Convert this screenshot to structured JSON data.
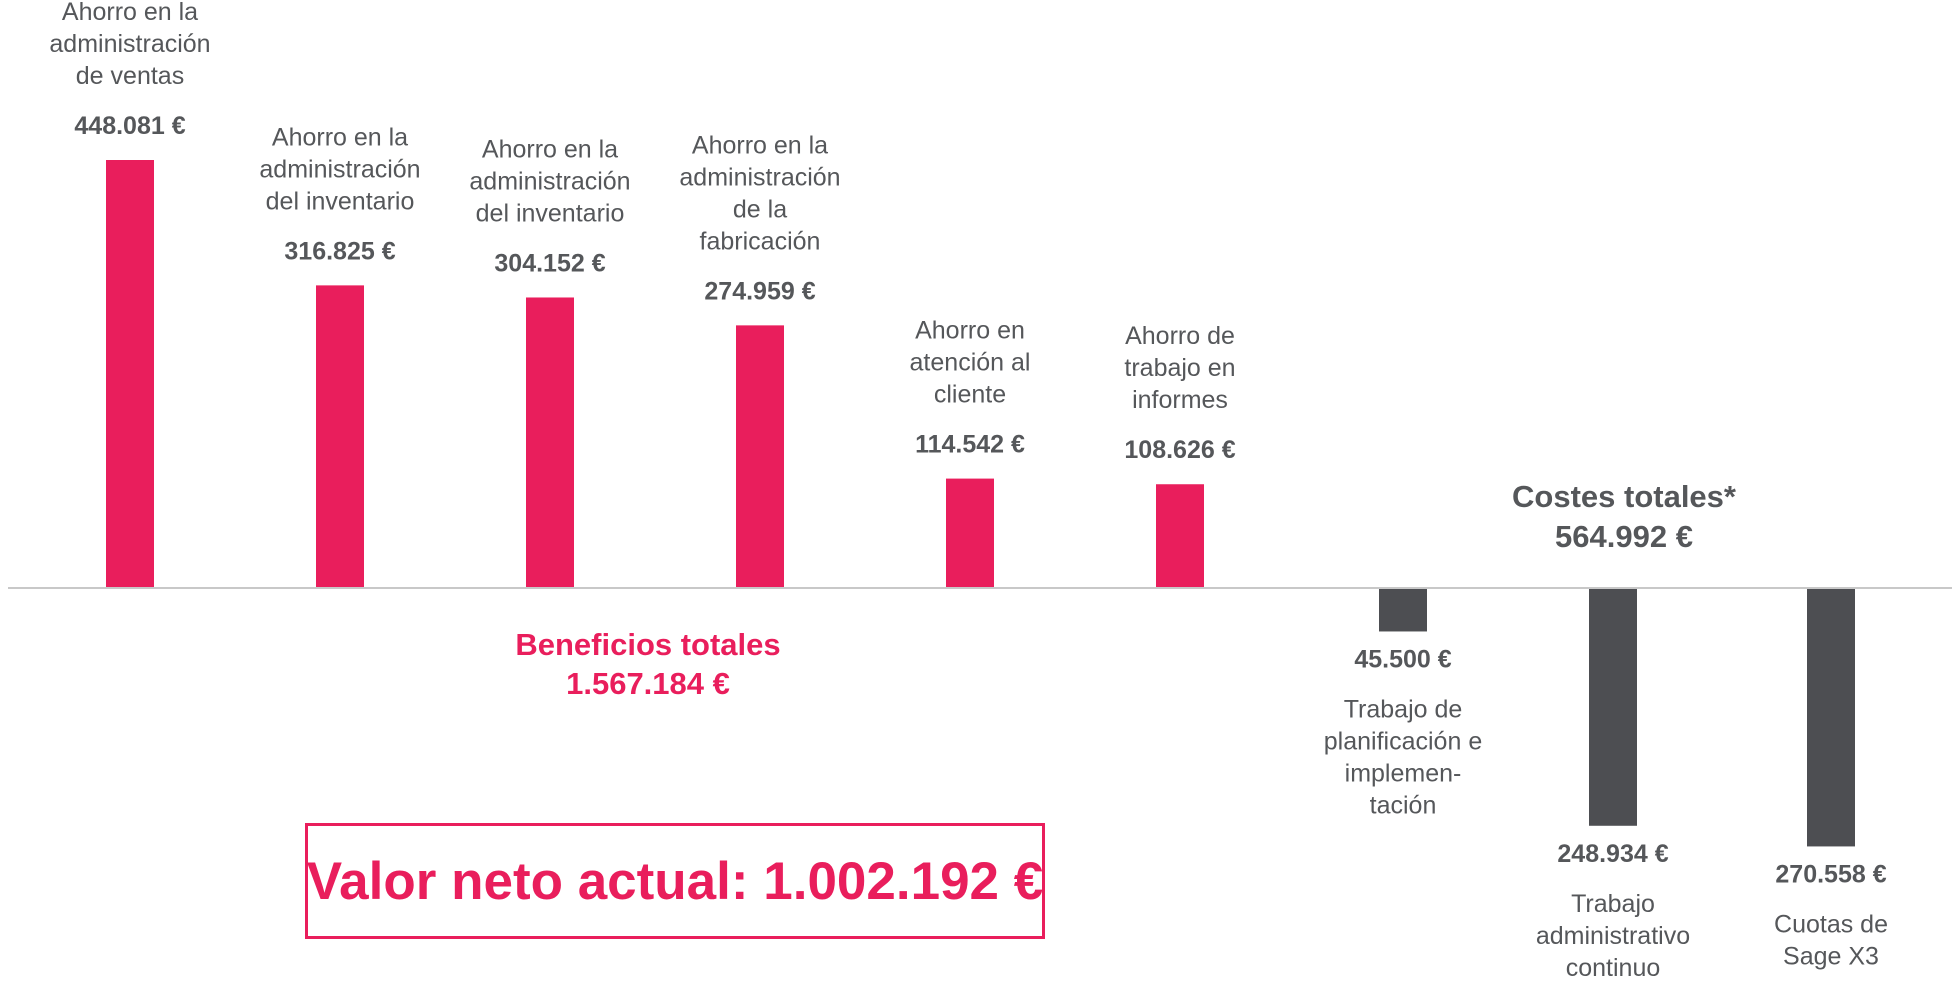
{
  "chart_data": {
    "type": "bar",
    "unit": "€",
    "colors": {
      "benefit": "#e91e5c",
      "cost": "#4d4e52",
      "axis": "#c8c8c8"
    },
    "series": [
      {
        "kind": "benefit",
        "label_lines": [
          "Ahorro en la",
          "administración",
          "de ventas"
        ],
        "value": 448081,
        "value_label": "448.081 €"
      },
      {
        "kind": "benefit",
        "label_lines": [
          "Ahorro en la",
          "administración",
          "del inventario"
        ],
        "value": 316825,
        "value_label": "316.825 €"
      },
      {
        "kind": "benefit",
        "label_lines": [
          "Ahorro en la",
          "administración",
          "del inventario"
        ],
        "value": 304152,
        "value_label": "304.152 €"
      },
      {
        "kind": "benefit",
        "label_lines": [
          "Ahorro en la",
          "administración",
          "de la",
          "fabricación"
        ],
        "value": 274959,
        "value_label": "274.959 €"
      },
      {
        "kind": "benefit",
        "label_lines": [
          "Ahorro en",
          "atención al",
          "cliente"
        ],
        "value": 114542,
        "value_label": "114.542 €"
      },
      {
        "kind": "benefit",
        "label_lines": [
          "Ahorro de",
          "trabajo en",
          "informes"
        ],
        "value": 108626,
        "value_label": "108.626 €"
      },
      {
        "kind": "cost",
        "label_lines": [
          "Trabajo de",
          "planificación e",
          "implemen-",
          "tación"
        ],
        "value": -45500,
        "value_label": "45.500 €"
      },
      {
        "kind": "cost",
        "label_lines": [
          "Trabajo",
          "administrativo",
          "continuo"
        ],
        "value": -248934,
        "value_label": "248.934 €"
      },
      {
        "kind": "cost",
        "label_lines": [
          "Cuotas de",
          "Sage X3"
        ],
        "value": -270558,
        "value_label": "270.558 €"
      }
    ],
    "totals": {
      "benefits": {
        "title": "Beneficios totales",
        "value_label": "1.567.184 €"
      },
      "costs": {
        "title": "Costes totales*",
        "value_label": "564.992 €"
      }
    }
  },
  "npv": {
    "text": "Valor neto actual: 1.002.192 €"
  }
}
